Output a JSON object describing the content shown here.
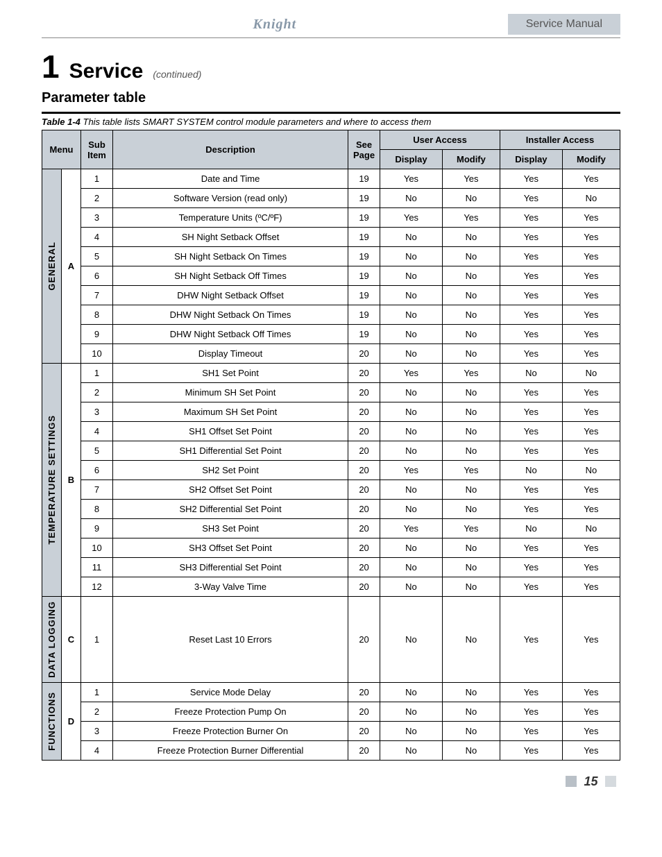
{
  "header": {
    "logo_text": "Knight",
    "manual_label": "Service Manual"
  },
  "section": {
    "number": "1",
    "title": "Service",
    "continued": "(continued)"
  },
  "subtitle": "Parameter table",
  "caption": {
    "label": "Table 1-4",
    "text": "This table lists SMART SYSTEM control module parameters and where to access them"
  },
  "columns": {
    "menu": "Menu",
    "sub_item": "Sub Item",
    "description": "Description",
    "see_page": "See Page",
    "user_access": "User Access",
    "installer_access": "Installer Access",
    "display": "Display",
    "modify": "Modify"
  },
  "groups": [
    {
      "menu_label": "GENERAL",
      "menu_letter": "A",
      "rows": [
        {
          "sub": "1",
          "desc": "Date and Time",
          "page": "19",
          "ud": "Yes",
          "um": "Yes",
          "id": "Yes",
          "im": "Yes"
        },
        {
          "sub": "2",
          "desc": "Software Version (read only)",
          "page": "19",
          "ud": "No",
          "um": "No",
          "id": "Yes",
          "im": "No"
        },
        {
          "sub": "3",
          "desc": "Temperature Units (ºC/ºF)",
          "page": "19",
          "ud": "Yes",
          "um": "Yes",
          "id": "Yes",
          "im": "Yes"
        },
        {
          "sub": "4",
          "desc": "SH Night Setback Offset",
          "page": "19",
          "ud": "No",
          "um": "No",
          "id": "Yes",
          "im": "Yes"
        },
        {
          "sub": "5",
          "desc": "SH Night Setback On Times",
          "page": "19",
          "ud": "No",
          "um": "No",
          "id": "Yes",
          "im": "Yes"
        },
        {
          "sub": "6",
          "desc": "SH Night Setback Off Times",
          "page": "19",
          "ud": "No",
          "um": "No",
          "id": "Yes",
          "im": "Yes"
        },
        {
          "sub": "7",
          "desc": "DHW Night Setback Offset",
          "page": "19",
          "ud": "No",
          "um": "No",
          "id": "Yes",
          "im": "Yes"
        },
        {
          "sub": "8",
          "desc": "DHW Night Setback On Times",
          "page": "19",
          "ud": "No",
          "um": "No",
          "id": "Yes",
          "im": "Yes"
        },
        {
          "sub": "9",
          "desc": "DHW Night Setback Off Times",
          "page": "19",
          "ud": "No",
          "um": "No",
          "id": "Yes",
          "im": "Yes"
        },
        {
          "sub": "10",
          "desc": "Display Timeout",
          "page": "20",
          "ud": "No",
          "um": "No",
          "id": "Yes",
          "im": "Yes"
        }
      ]
    },
    {
      "menu_label": "TEMPERATURE SETTINGS",
      "menu_letter": "B",
      "rows": [
        {
          "sub": "1",
          "desc": "SH1 Set Point",
          "page": "20",
          "ud": "Yes",
          "um": "Yes",
          "id": "No",
          "im": "No"
        },
        {
          "sub": "2",
          "desc": "Minimum SH Set Point",
          "page": "20",
          "ud": "No",
          "um": "No",
          "id": "Yes",
          "im": "Yes"
        },
        {
          "sub": "3",
          "desc": "Maximum SH Set Point",
          "page": "20",
          "ud": "No",
          "um": "No",
          "id": "Yes",
          "im": "Yes"
        },
        {
          "sub": "4",
          "desc": "SH1 Offset Set Point",
          "page": "20",
          "ud": "No",
          "um": "No",
          "id": "Yes",
          "im": "Yes"
        },
        {
          "sub": "5",
          "desc": "SH1 Differential Set Point",
          "page": "20",
          "ud": "No",
          "um": "No",
          "id": "Yes",
          "im": "Yes"
        },
        {
          "sub": "6",
          "desc": "SH2 Set Point",
          "page": "20",
          "ud": "Yes",
          "um": "Yes",
          "id": "No",
          "im": "No"
        },
        {
          "sub": "7",
          "desc": "SH2 Offset Set Point",
          "page": "20",
          "ud": "No",
          "um": "No",
          "id": "Yes",
          "im": "Yes"
        },
        {
          "sub": "8",
          "desc": "SH2 Differential Set Point",
          "page": "20",
          "ud": "No",
          "um": "No",
          "id": "Yes",
          "im": "Yes"
        },
        {
          "sub": "9",
          "desc": "SH3 Set Point",
          "page": "20",
          "ud": "Yes",
          "um": "Yes",
          "id": "No",
          "im": "No"
        },
        {
          "sub": "10",
          "desc": "SH3 Offset Set Point",
          "page": "20",
          "ud": "No",
          "um": "No",
          "id": "Yes",
          "im": "Yes"
        },
        {
          "sub": "11",
          "desc": "SH3 Differential Set Point",
          "page": "20",
          "ud": "No",
          "um": "No",
          "id": "Yes",
          "im": "Yes"
        },
        {
          "sub": "12",
          "desc": "3-Way Valve Time",
          "page": "20",
          "ud": "No",
          "um": "No",
          "id": "Yes",
          "im": "Yes"
        }
      ]
    },
    {
      "menu_label": "DATA LOGGING",
      "menu_letter": "C",
      "rows": [
        {
          "sub": "1",
          "desc": "Reset Last 10 Errors",
          "page": "20",
          "ud": "No",
          "um": "No",
          "id": "Yes",
          "im": "Yes"
        }
      ]
    },
    {
      "menu_label": "FUNCTIONS",
      "menu_letter": "D",
      "rows": [
        {
          "sub": "1",
          "desc": "Service Mode Delay",
          "page": "20",
          "ud": "No",
          "um": "No",
          "id": "Yes",
          "im": "Yes"
        },
        {
          "sub": "2",
          "desc": "Freeze Protection Pump On",
          "page": "20",
          "ud": "No",
          "um": "No",
          "id": "Yes",
          "im": "Yes"
        },
        {
          "sub": "3",
          "desc": "Freeze Protection Burner On",
          "page": "20",
          "ud": "No",
          "um": "No",
          "id": "Yes",
          "im": "Yes"
        },
        {
          "sub": "4",
          "desc": "Freeze Protection Burner Differential",
          "page": "20",
          "ud": "No",
          "um": "No",
          "id": "Yes",
          "im": "Yes"
        }
      ]
    }
  ],
  "page_number": "15",
  "styling": {
    "header_bg": "#c9d0d7",
    "table_header_bg": "#c9d0d7",
    "border_color": "#000000",
    "font_size_body": 13,
    "font_size_section_num": 46,
    "font_size_section_title": 30
  }
}
